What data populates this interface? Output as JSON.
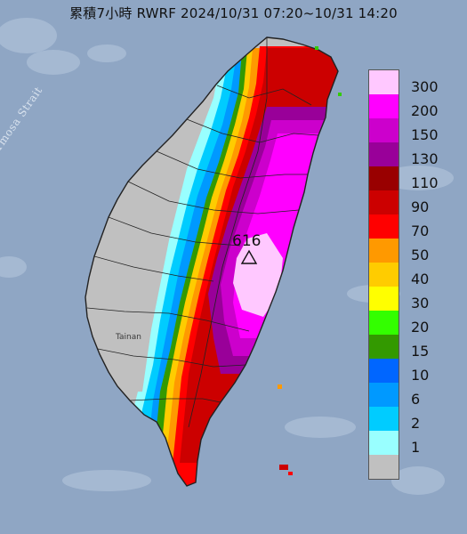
{
  "title": "累積7小時 RWRF 2024/10/31 07:20~10/31 14:20",
  "strait_label": "Formosa Strait",
  "city_label": "Tainan",
  "max_value_label": "616",
  "legend": [
    {
      "label": "300",
      "color": "#ffc8ff"
    },
    {
      "label": "200",
      "color": "#ff00ff"
    },
    {
      "label": "150",
      "color": "#cc00cc"
    },
    {
      "label": "130",
      "color": "#990099"
    },
    {
      "label": "110",
      "color": "#990000"
    },
    {
      "label": "90",
      "color": "#cc0000"
    },
    {
      "label": "70",
      "color": "#ff0000"
    },
    {
      "label": "50",
      "color": "#ff9900"
    },
    {
      "label": "40",
      "color": "#ffcc00"
    },
    {
      "label": "30",
      "color": "#ffff00"
    },
    {
      "label": "20",
      "color": "#33ff00"
    },
    {
      "label": "15",
      "color": "#339900"
    },
    {
      "label": "10",
      "color": "#0066ff"
    },
    {
      "label": "6",
      "color": "#0099ff"
    },
    {
      "label": "2",
      "color": "#00ccff"
    },
    {
      "label": "1",
      "color": "#99ffff"
    },
    {
      "label": "",
      "color": "#c0c0c0"
    }
  ],
  "colors": {
    "sea": "#8fa6c4",
    "land_dry": "#c8c8c8",
    "boundary": "#222222"
  },
  "icons": {
    "max_marker": "triangle-marker-icon"
  }
}
